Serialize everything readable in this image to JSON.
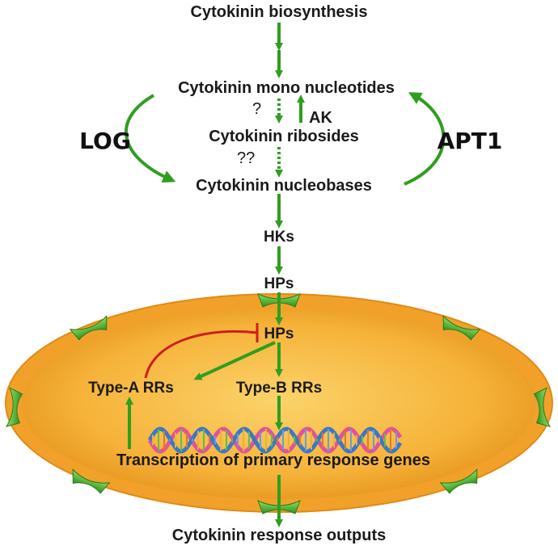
{
  "nodes": {
    "biosynthesis": "Cytokinin biosynthesis",
    "mono_nucleotides": "Cytokinin mono nucleotides",
    "ribosides": "Cytokinin ribosides",
    "nucleobases": "Cytokinin nucleobases",
    "hks": "HKs",
    "hps_outer": "HPs",
    "hps_inner": "HPs",
    "type_a": "Type-A RRs",
    "type_b": "Type-B RRs",
    "transcription": "Transcription of primary response genes",
    "outputs": "Cytokinin response outputs"
  },
  "side_labels": {
    "log": "LOG",
    "apt1": "APT1",
    "ak": "AK",
    "q1": "?",
    "q2": "??"
  },
  "colors": {
    "arrow_green": "#2f9e1f",
    "inhibit_red": "#cc1f1f",
    "nucleus_outer": "#f4a22a",
    "nucleus_inner": "#f7b93c",
    "channel_green": "#5cc23a",
    "dna_pink": "#e0539a",
    "dna_blue": "#3a78c8"
  },
  "icons": {
    "dna": "dna-helix-icon",
    "channel": "membrane-channel-icon"
  }
}
